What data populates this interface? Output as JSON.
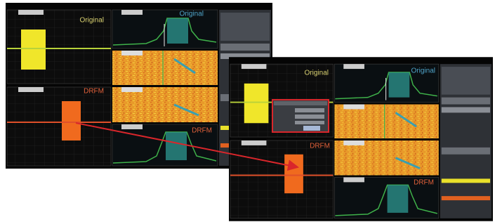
{
  "left_screen": {
    "waveform_original": "Original",
    "spectrum_original": "Original",
    "waveform_drfm": "DRFM",
    "spectrum_drfm": "DRFM"
  },
  "right_screen": {
    "waveform_original": "Original",
    "spectrum_original": "Original",
    "waveform_drfm": "DRFM",
    "spectrum_drfm": "DRFM"
  }
}
